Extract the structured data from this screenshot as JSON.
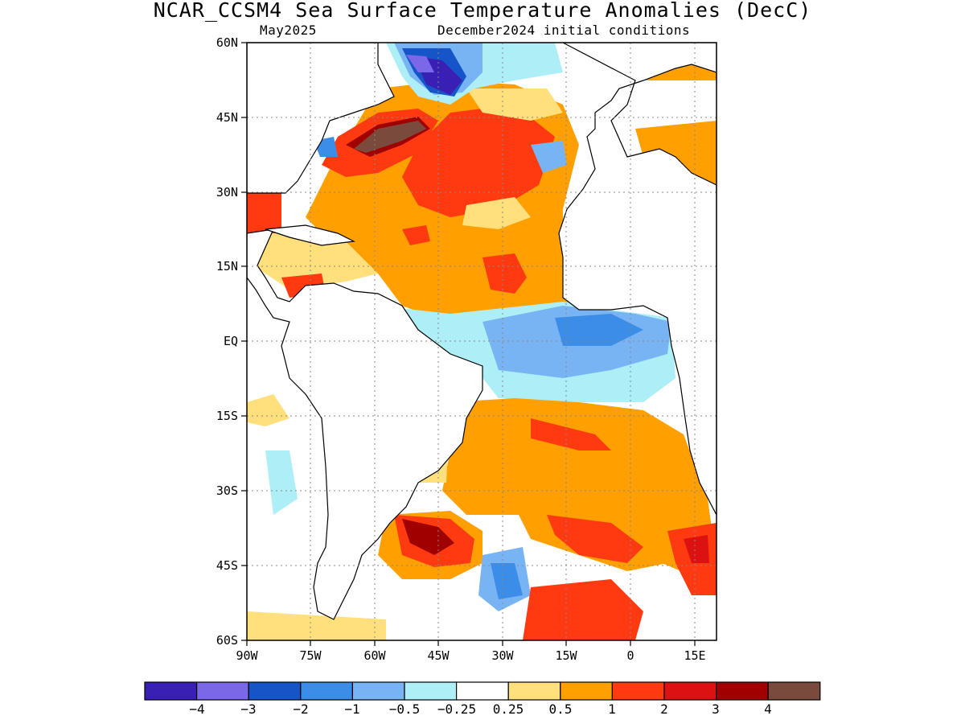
{
  "title": "NCAR_CCSM4 Sea Surface Temperature Anomalies (DecC)",
  "subtitle_left": "May2025",
  "subtitle_right": "December2024 initial conditions",
  "map": {
    "region": "Atlantic Ocean",
    "projection": "cylindrical",
    "lon_range": [
      -90,
      20
    ],
    "lat_range": [
      -60,
      60
    ],
    "lat_labels": [
      "60N",
      "45N",
      "30N",
      "15N",
      "EQ",
      "15S",
      "30S",
      "45S",
      "60S"
    ],
    "lon_labels": [
      "90W",
      "75W",
      "60W",
      "45W",
      "30W",
      "15W",
      "0",
      "15E"
    ],
    "grid": "dotted"
  },
  "colorbar": {
    "colors": [
      "#3a1fb4",
      "#7b68e8",
      "#1655c8",
      "#3c8de8",
      "#78b4f4",
      "#aeeef6",
      "#ffffff",
      "#ffe07c",
      "#ffa000",
      "#ff3a10",
      "#dc1212",
      "#a00000",
      "#7a4a3c"
    ],
    "labels": [
      "−4",
      "−3",
      "−2",
      "−1",
      "−0.5",
      "−0.25",
      "0.25",
      "0.5",
      "1",
      "2",
      "3",
      "4"
    ]
  }
}
